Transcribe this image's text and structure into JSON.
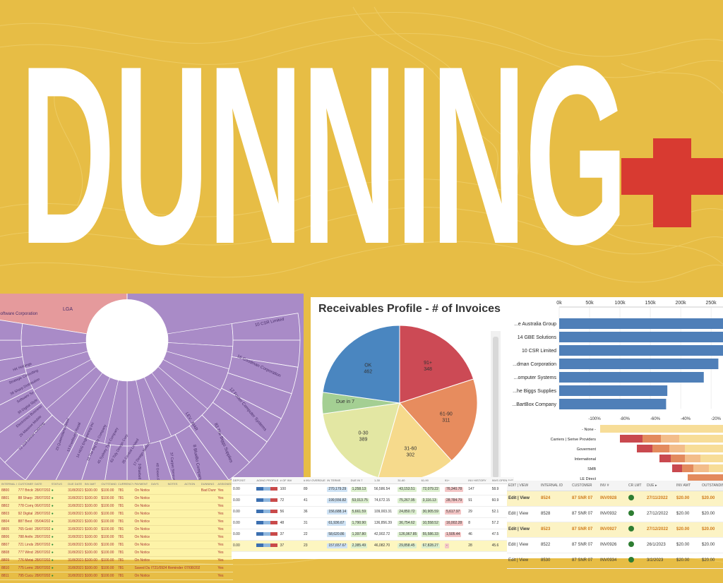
{
  "hero": {
    "title": "DUNNING"
  },
  "colors": {
    "background": "#e7bd45",
    "title": "#ffffff",
    "plus": "#d83a31",
    "sunburst_purple": "#a98bc7",
    "sunburst_pink": "#e59a9c"
  },
  "sunburst": {
    "outer_labels": [
      "Software Corporation",
      "LGA",
      "10 CSR Limited",
      "16 Goodman Corporation",
      "12 Foster Computer Systems",
      "83 The Biggs Supplies",
      "8 BlueBo Company",
      "37 Carpet Service Partners",
      "40 Green Forest",
      "9 Bluebell Partners",
      "35 Hammond Lapalma",
      "20 Haddock Group",
      "20 Aarrow Limited"
    ],
    "inner_labels": [
      "LEV...MAR"
    ],
    "radial_labels": [
      "HK Holdings",
      "Strategic Consulting",
      "38 Sharp Distribution",
      "Software Sy...",
      "39 Digital Style",
      "Electronics Business",
      "29 Massive Mobile",
      "72 229 Dinner Catering",
      "23 Queensland Retail",
      "13 Freeboard Retail",
      "14 HGG Engineering Inc",
      "18 The Big City Company",
      "45 Sydney Tyre Company",
      "63 Tidy Design Corp",
      "35 Central Limited",
      "17 Design Motors"
    ]
  },
  "pie": {
    "title": "Receivables Profile - # of Invoices",
    "slices": [
      {
        "label": "OK",
        "value": 462,
        "color": "#4a86c0"
      },
      {
        "label": "91+",
        "value": 348,
        "color": "#cc4a55"
      },
      {
        "label": "61-90",
        "value": 311,
        "color": "#e78c5e"
      },
      {
        "label": "31-60",
        "value": 302,
        "color": "#f6da8c"
      },
      {
        "label": "0-30",
        "value": 389,
        "color": "#e3e7a3"
      },
      {
        "label": "Due in 7",
        "value": null,
        "color": "#a4cf93"
      }
    ]
  },
  "bars": {
    "axis_ticks": [
      "0k",
      "50k",
      "100k",
      "150k",
      "200k",
      "250k"
    ],
    "axis_max": 265,
    "items": [
      {
        "label": "...e Australia Group",
        "value": 318
      },
      {
        "label": "14 GBE Solutions",
        "value": 300
      },
      {
        "label": "10 CSR Limited",
        "value": 272
      },
      {
        "label": "...dman Corporation",
        "value": 262
      },
      {
        "label": "...omputer Systems",
        "value": 238
      },
      {
        "label": "...he Biggs Supplies",
        "value": 178
      },
      {
        "label": "...BartBox Company",
        "value": 176
      }
    ]
  },
  "diverging": {
    "axis_ticks": [
      "-100%",
      "-80%",
      "-60%",
      "-40%",
      "-20%"
    ],
    "rows": [
      {
        "label": "- None -"
      },
      {
        "label": "Carriers | Serive Providers"
      },
      {
        "label": "Goverment"
      },
      {
        "label": "International"
      },
      {
        "label": "SMB"
      },
      {
        "label": "LE Direct"
      }
    ]
  },
  "table_left": {
    "headers": [
      "INTERNAL ID",
      "CUSTOMER",
      "DATE",
      "STATUS",
      "DUE DATE",
      "INV AMT",
      "OUTSTANDING",
      "CURRENCY",
      "PAYMENT",
      "DAYS",
      "NOTES",
      "ACTION",
      "DUNNING",
      "ASSIGNED"
    ],
    "rows": [
      [
        "8800",
        "777 Brickfields",
        "28/07/2021",
        "●",
        "31/8/2021",
        "$100.00",
        "$100.00",
        "781",
        "On Notice Dunning",
        "",
        "",
        "",
        "Bad Dunning",
        "Yes"
      ],
      [
        "8801",
        "88 Sharp Distribution",
        "28/07/2021",
        "●",
        "31/8/2021",
        "$100.00",
        "$100.00",
        "781",
        "On Notice Dunning",
        "",
        "",
        "",
        "",
        "Yes"
      ],
      [
        "8802",
        "778 Computer Gold Coast",
        "06/07/2021",
        "●",
        "31/8/2021",
        "$100.00",
        "$100.00",
        "781",
        "On Notice Dunning",
        "",
        "",
        "",
        "",
        "Yes"
      ],
      [
        "8803",
        "92 Digital Style",
        "28/07/2021",
        "●",
        "31/8/2021",
        "$100.00",
        "$100.00",
        "781",
        "On Notice Dunning",
        "",
        "",
        "",
        "",
        "Yes"
      ],
      [
        "8804",
        "887 Best Group Brisbane",
        "05/04/2021",
        "●",
        "31/8/2021",
        "$100.00",
        "$100.00",
        "781",
        "On Notice Dunning",
        "",
        "",
        "",
        "",
        "Yes"
      ],
      [
        "8805",
        "765 Gold Coast Engineering",
        "28/07/2021",
        "●",
        "31/8/2021",
        "$100.00",
        "$100.00",
        "781",
        "On Notice Dunning",
        "",
        "",
        "",
        "",
        "Yes"
      ],
      [
        "8806",
        "788 Anthony Flowers",
        "28/07/2021",
        "●",
        "31/8/2021",
        "$100.00",
        "$100.00",
        "781",
        "On Notice Dunning",
        "",
        "",
        "",
        "",
        "Yes"
      ],
      [
        "8807",
        "721 Lindsons Cup",
        "28/07/2021",
        "●",
        "31/8/2021",
        "$100.00",
        "$100.00",
        "781",
        "On Notice Dunning",
        "",
        "",
        "",
        "",
        "Yes"
      ],
      [
        "8808",
        "777 Windshield",
        "28/07/2021",
        "●",
        "31/8/2021",
        "$100.00",
        "$100.00",
        "781",
        "On Notice Dunning",
        "",
        "",
        "",
        "",
        "Yes"
      ],
      [
        "8809",
        "776 Metal and glass Supply",
        "28/07/2021",
        "●",
        "31/8/2021",
        "$100.00",
        "$100.00",
        "781",
        "On Notice Dunning",
        "",
        "",
        "",
        "",
        "Yes"
      ],
      [
        "8810",
        "775 Lemon Hills",
        "28/07/2021",
        "●",
        "31/8/2021",
        "$100.00",
        "$100.00",
        "781",
        "Saved Dunning Level 8 Group",
        "IT21/0924",
        "Reminder Warning",
        "07/08/2021",
        "",
        "Yes"
      ],
      [
        "8811",
        "795 Cucumber Hills",
        "28/07/2021",
        "●",
        "31/8/2021",
        "$100.00",
        "$100.00",
        "781",
        "On Notice Dunning",
        "",
        "",
        "",
        "",
        "Yes"
      ]
    ]
  },
  "table_mid": {
    "headers": [
      "DEPOSIT",
      "AGING PROFILE",
      "# OF INV",
      "# INV OVERDUE",
      "IN TERMS",
      "DUE IN 7",
      "1-30",
      "31-60",
      "61-90",
      "91+",
      "INV HISTORY",
      "INVS OPEN AVE"
    ],
    "rows": [
      {
        "deposit": "0.00",
        "ap": "110",
        "num_inv": "100",
        "overdue": "89",
        "in_terms": "270,179.29",
        "due7": "1,258.13",
        "d30": "56,586.54",
        "d60": "43,153.51",
        "d90": "72,079.22",
        "d91": "76,340.78",
        "hist": "147",
        "open": "58.9"
      },
      {
        "deposit": "0.00",
        "ap": "",
        "num_inv": "72",
        "overdue": "41",
        "in_terms": "199,556.82",
        "due7": "53,013.75",
        "d30": "74,672.15",
        "d60": "75,267.95",
        "d90": "3,116.13",
        "d91": "28,784.79",
        "hist": "91",
        "open": "60.9"
      },
      {
        "deposit": "0.00",
        "ap": "",
        "num_inv": "56",
        "overdue": "36",
        "in_terms": "156,688.14",
        "due7": "5,661.59",
        "d30": "109,003.31",
        "d60": "24,850.72",
        "d90": "30,905.59",
        "d91": "5,617.97",
        "hist": "29",
        "open": "52.1"
      },
      {
        "deposit": "0.00",
        "ap": "",
        "num_inv": "48",
        "overdue": "31",
        "in_terms": "61,936.67",
        "due7": "1,790.90",
        "d30": "136,856.39",
        "d60": "36,754.62",
        "d90": "10,558.52",
        "d91": "16,002.28",
        "hist": "8",
        "open": "57.2"
      },
      {
        "deposit": "0.00",
        "ap": "",
        "num_inv": "37",
        "overdue": "22",
        "in_terms": "58,620.86",
        "due7": "1,397.80",
        "d30": "42,902.72",
        "d60": "126,967.85",
        "d90": "55,586.33",
        "d91": "1,505.44",
        "hist": "46",
        "open": "47.5"
      },
      {
        "deposit": "0.00",
        "ap": "91",
        "num_inv": "37",
        "overdue": "23",
        "in_terms": "157,657.67",
        "due7": "2,385.49",
        "d30": "46,082.70",
        "d60": "29,858.45",
        "d90": "67,828.27",
        "d91": "-",
        "hist": "28",
        "open": "45.6"
      }
    ]
  },
  "table_right": {
    "headers": [
      "EDIT | VIEW",
      "INTERNAL ID",
      "CUSTOMER",
      "INV #",
      "CR LMT",
      "DUE ▸",
      "INV AMT",
      "OUTSTANDING"
    ],
    "rows": [
      {
        "edit": "Edit | View",
        "id": "8524",
        "customer": "87 SNR 07",
        "inv": "INV0928",
        "due": "27/11/2022",
        "amt": "$20.00",
        "out": "$20.00",
        "hl": true
      },
      {
        "edit": "Edit | View",
        "id": "8528",
        "customer": "87 SNR 07",
        "inv": "INV0932",
        "due": "27/12/2022",
        "amt": "$20.00",
        "out": "$20.00",
        "hl": false
      },
      {
        "edit": "Edit | View",
        "id": "8523",
        "customer": "87 SNR 07",
        "inv": "INV0927",
        "due": "27/12/2022",
        "amt": "$20.00",
        "out": "$20.00",
        "hl": true
      },
      {
        "edit": "Edit | View",
        "id": "8522",
        "customer": "87 SNR 07",
        "inv": "INV0926",
        "due": "26/1/2023",
        "amt": "$20.00",
        "out": "$20.00",
        "hl": false
      },
      {
        "edit": "Edit | View",
        "id": "8530",
        "customer": "87 SNR 07",
        "inv": "INV0934",
        "due": "3/2/2023",
        "amt": "$20.00",
        "out": "$20.00",
        "hl": false
      }
    ]
  }
}
